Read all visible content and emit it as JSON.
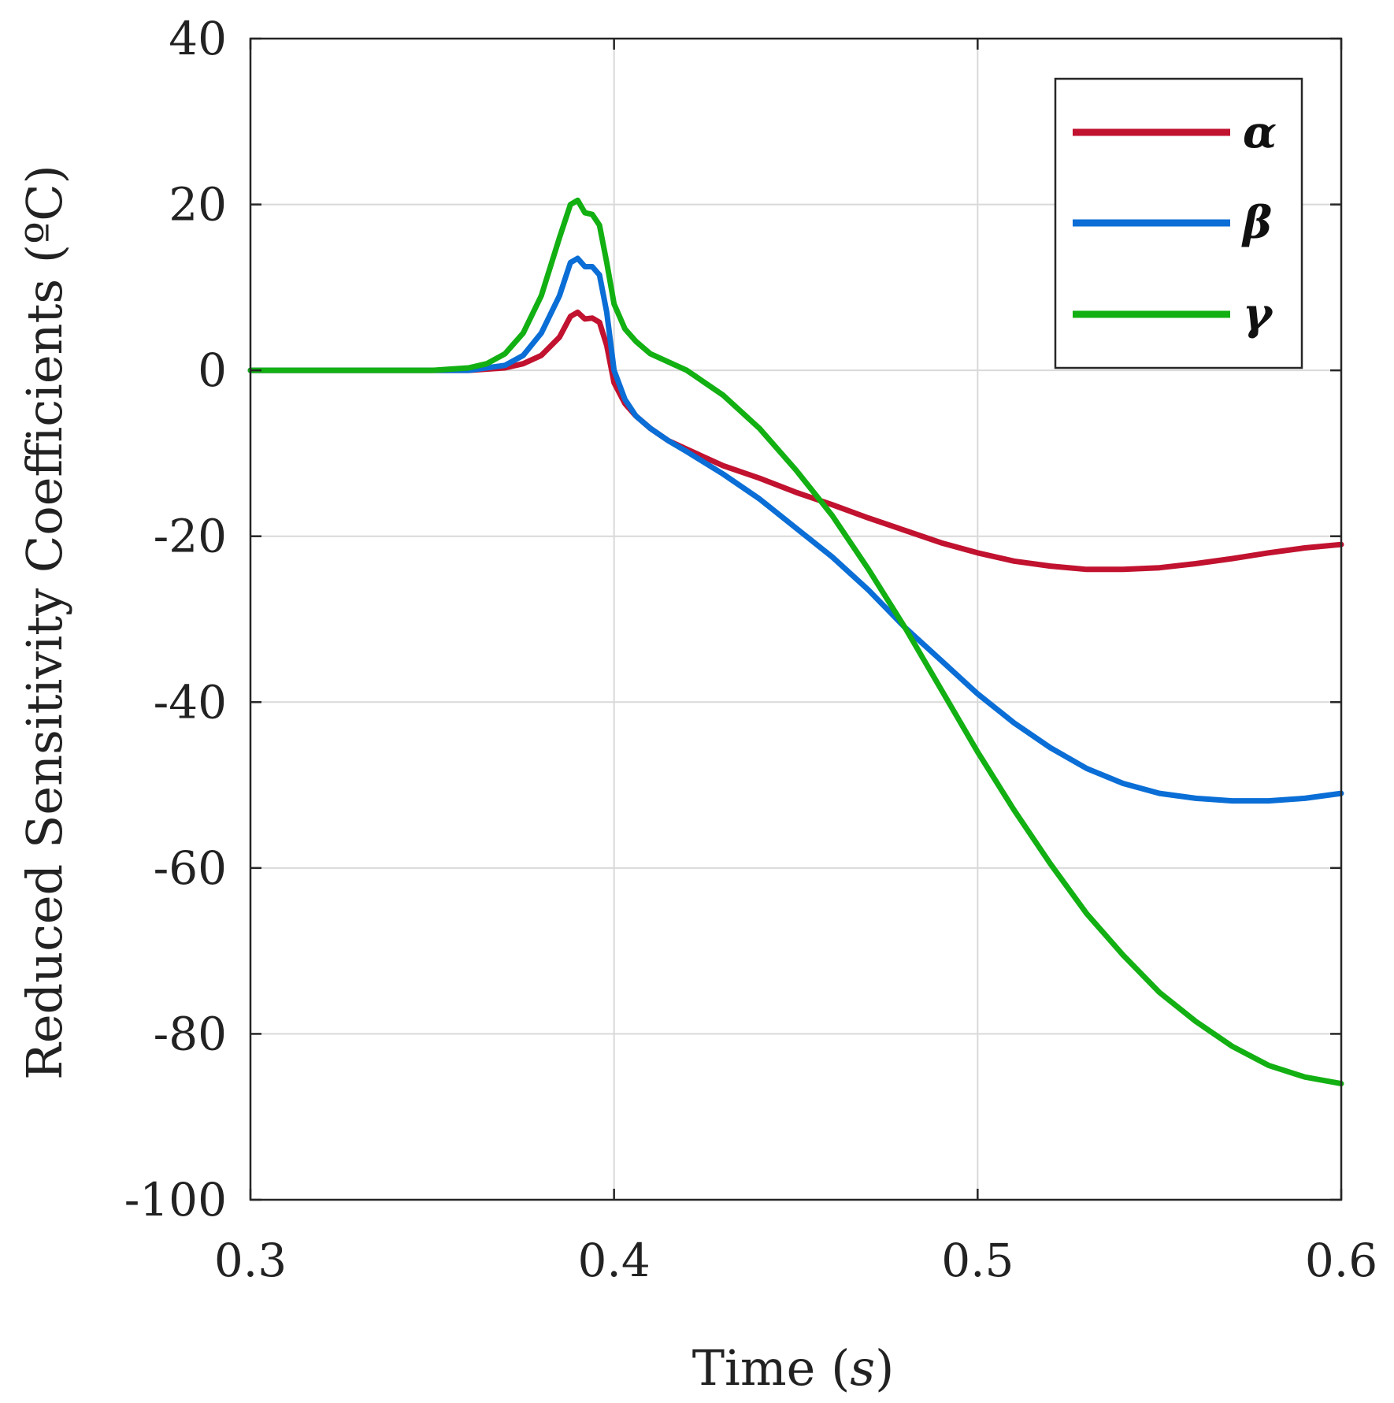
{
  "chart_data": {
    "type": "line",
    "title": "",
    "xlabel": "Time (s)",
    "xlabel_main": "Time (",
    "xlabel_var": "s",
    "xlabel_close": ")",
    "ylabel": "Reduced Sensitivity Coefficients (ºC)",
    "ylabel_main": "Reduced Sensitivity Coefficients (",
    "ylabel_deg": "º",
    "ylabel_unit": "C)",
    "xlim": [
      0.3,
      0.6
    ],
    "ylim": [
      -100,
      40
    ],
    "x_ticks": [
      0.3,
      0.4,
      0.5,
      0.6
    ],
    "x_tick_labels": [
      "0.3",
      "0.4",
      "0.5",
      "0.6"
    ],
    "y_ticks": [
      40,
      20,
      0,
      -20,
      -40,
      -60,
      -80,
      -100
    ],
    "y_tick_labels": [
      "40",
      "20",
      "0",
      "-20",
      "-40",
      "-60",
      "-80",
      "-100"
    ],
    "grid": true,
    "legend_position": "top-right",
    "series": [
      {
        "name": "α",
        "color": "#c1122f",
        "x": [
          0.3,
          0.36,
          0.37,
          0.375,
          0.38,
          0.385,
          0.388,
          0.39,
          0.392,
          0.394,
          0.396,
          0.398,
          0.4,
          0.403,
          0.406,
          0.41,
          0.415,
          0.42,
          0.43,
          0.44,
          0.45,
          0.46,
          0.47,
          0.48,
          0.49,
          0.5,
          0.51,
          0.52,
          0.53,
          0.54,
          0.55,
          0.56,
          0.57,
          0.58,
          0.59,
          0.6
        ],
        "y": [
          0,
          0,
          0.3,
          0.8,
          1.8,
          4.0,
          6.5,
          7.0,
          6.2,
          6.3,
          5.8,
          3.0,
          -1.5,
          -4.0,
          -5.5,
          -7.0,
          -8.5,
          -9.5,
          -11.5,
          -13.0,
          -14.7,
          -16.2,
          -17.8,
          -19.3,
          -20.8,
          -22.0,
          -23.0,
          -23.6,
          -24.0,
          -24.0,
          -23.8,
          -23.3,
          -22.7,
          -22.0,
          -21.4,
          -21.0
        ]
      },
      {
        "name": "β",
        "color": "#0a6ed6",
        "x": [
          0.3,
          0.36,
          0.37,
          0.375,
          0.38,
          0.385,
          0.388,
          0.39,
          0.392,
          0.394,
          0.396,
          0.398,
          0.4,
          0.403,
          0.406,
          0.41,
          0.415,
          0.42,
          0.43,
          0.44,
          0.45,
          0.46,
          0.47,
          0.48,
          0.49,
          0.5,
          0.51,
          0.52,
          0.53,
          0.54,
          0.55,
          0.56,
          0.57,
          0.58,
          0.59,
          0.6
        ],
        "y": [
          0,
          0,
          0.6,
          1.8,
          4.5,
          9.0,
          13.0,
          13.5,
          12.5,
          12.5,
          11.5,
          7.0,
          0.0,
          -3.5,
          -5.5,
          -7.0,
          -8.5,
          -9.8,
          -12.5,
          -15.5,
          -19.0,
          -22.5,
          -26.5,
          -31.0,
          -35.0,
          -39.0,
          -42.5,
          -45.5,
          -48.0,
          -49.8,
          -51.0,
          -51.6,
          -51.9,
          -51.9,
          -51.6,
          -51.0
        ]
      },
      {
        "name": "γ",
        "color": "#12b012",
        "x": [
          0.3,
          0.35,
          0.36,
          0.365,
          0.37,
          0.375,
          0.38,
          0.385,
          0.388,
          0.39,
          0.392,
          0.394,
          0.396,
          0.398,
          0.4,
          0.403,
          0.406,
          0.41,
          0.415,
          0.42,
          0.43,
          0.44,
          0.45,
          0.46,
          0.47,
          0.48,
          0.49,
          0.5,
          0.51,
          0.52,
          0.53,
          0.54,
          0.55,
          0.56,
          0.57,
          0.58,
          0.59,
          0.6
        ],
        "y": [
          0,
          0,
          0.3,
          0.8,
          2.0,
          4.5,
          9.0,
          16.0,
          20.0,
          20.5,
          19.0,
          18.8,
          17.5,
          13.0,
          8.0,
          5.0,
          3.5,
          2.0,
          1.0,
          0.0,
          -3.0,
          -7.0,
          -12.0,
          -17.5,
          -24.0,
          -31.0,
          -38.5,
          -46.0,
          -53.0,
          -59.5,
          -65.5,
          -70.5,
          -75.0,
          -78.5,
          -81.5,
          -83.8,
          -85.2,
          -86.0
        ]
      }
    ]
  }
}
